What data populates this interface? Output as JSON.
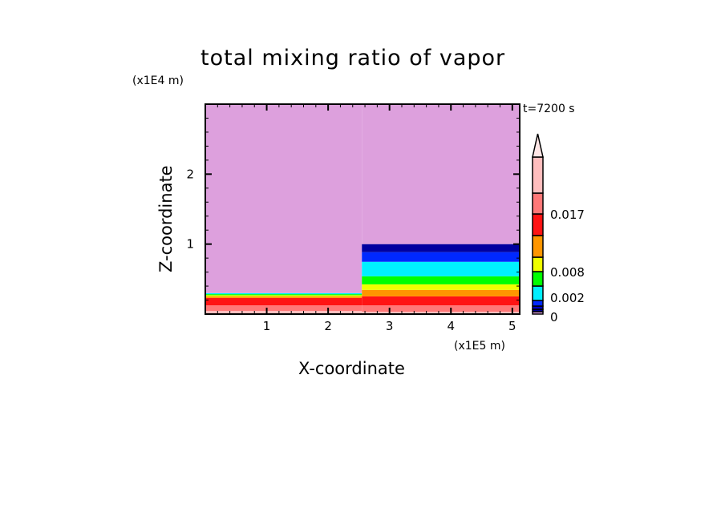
{
  "chart_data": {
    "type": "heatmap",
    "title": "total mixing ratio of vapor",
    "xlabel": "X-coordinate",
    "ylabel": "Z-coordinate",
    "x_unit": "(x1E5 m)",
    "y_unit": "(x1E4 m)",
    "annotation": "t=7200 s",
    "xlim": [
      0,
      5.12
    ],
    "ylim": [
      0,
      3.0
    ],
    "xticks": [
      "1",
      "2",
      "3",
      "4",
      "5"
    ],
    "yticks": [
      "1",
      "2"
    ],
    "colorbar": {
      "colors": [
        "#dda0dd",
        "#000096",
        "#0000c8",
        "#0028ff",
        "#00f0ff",
        "#00ff00",
        "#f0ff00",
        "#ff9600",
        "#ff1414",
        "#ff7878",
        "#ffbebe"
      ],
      "over_color": "#ffe6e6",
      "labels": [
        {
          "text": "0",
          "level": 0
        },
        {
          "text": "0.002",
          "level": 3
        },
        {
          "text": "0.008",
          "level": 6
        },
        {
          "text": "0.017",
          "level": 9
        }
      ]
    },
    "regions": [
      {
        "x_range": [
          0,
          2.55
        ],
        "bands": [
          {
            "z": [
              0,
              0.046
            ],
            "color": "#ffbebe"
          },
          {
            "z": [
              0.046,
              0.126
            ],
            "color": "#ff7878"
          },
          {
            "z": [
              0.126,
              0.23
            ],
            "color": "#ff1414"
          },
          {
            "z": [
              0.23,
              0.255
            ],
            "color": "#ff9600"
          },
          {
            "z": [
              0.255,
              0.27
            ],
            "color": "#f0ff00"
          },
          {
            "z": [
              0.27,
              0.285
            ],
            "color": "#00ff00"
          },
          {
            "z": [
              0.285,
              0.3
            ],
            "color": "#00f0ff"
          },
          {
            "z": [
              0.3,
              3.0
            ],
            "color": "#dda0dd"
          }
        ]
      },
      {
        "x_range": [
          2.55,
          5.12
        ],
        "bands": [
          {
            "z": [
              0,
              0.034
            ],
            "color": "#ffbebe"
          },
          {
            "z": [
              0.034,
              0.126
            ],
            "color": "#ff7878"
          },
          {
            "z": [
              0.126,
              0.253
            ],
            "color": "#ff1414"
          },
          {
            "z": [
              0.253,
              0.345
            ],
            "color": "#ff9600"
          },
          {
            "z": [
              0.345,
              0.425
            ],
            "color": "#f0ff00"
          },
          {
            "z": [
              0.425,
              0.54
            ],
            "color": "#00ff00"
          },
          {
            "z": [
              0.54,
              0.747
            ],
            "color": "#00f0ff"
          },
          {
            "z": [
              0.747,
              0.885
            ],
            "color": "#0028ff"
          },
          {
            "z": [
              0.885,
              1.0
            ],
            "color": "#0000a0"
          },
          {
            "z": [
              1.0,
              3.0
            ],
            "color": "#dda0dd"
          }
        ]
      }
    ]
  }
}
